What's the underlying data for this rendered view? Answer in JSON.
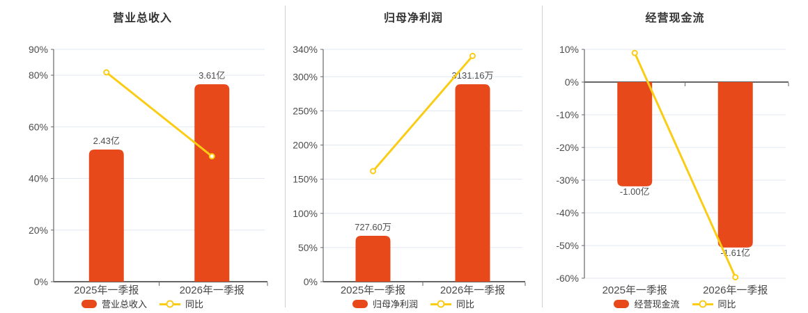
{
  "colors": {
    "background": "#ffffff",
    "bar": "#E8491B",
    "line": "#FACC14",
    "grid": "#E2E7F1",
    "axis": "#666666",
    "tick_label": "#4D4D4D",
    "value_label": "#4D4D4D",
    "category_label": "#4A4A4A",
    "title": "#333333",
    "legend_text": "#333333",
    "divider": "#CFCFCF",
    "marker_fill": "#ffffff"
  },
  "chart_data": [
    {
      "type": "bar+line",
      "title": "营业总收入",
      "categories": [
        "2025年一季报",
        "2026年一季报"
      ],
      "bar_series": {
        "name": "营业总收入",
        "value_labels": [
          "2.43亿",
          "3.61亿"
        ],
        "plot_values_pct": [
          51.2,
          76.5
        ]
      },
      "line_series": {
        "name": "同比",
        "values_pct": [
          81.1,
          48.6
        ]
      },
      "y_ticks_pct": [
        90,
        80,
        60,
        40,
        20,
        0
      ],
      "y_axis_range": [
        0,
        90
      ],
      "tick_suffix": "%",
      "value_label_position": "above",
      "grid": true,
      "legend_position": "bottom"
    },
    {
      "type": "bar+line",
      "title": "归母净利润",
      "categories": [
        "2025年一季报",
        "2026年一季报"
      ],
      "bar_series": {
        "name": "归母净利润",
        "value_labels": [
          "727.60万",
          "3131.16万"
        ],
        "plot_values_pct": [
          67.2,
          289.0
        ]
      },
      "line_series": {
        "name": "同比",
        "values_pct": [
          161.8,
          330.4
        ]
      },
      "y_ticks_pct": [
        340,
        300,
        250,
        200,
        150,
        100,
        50,
        0
      ],
      "y_axis_range": [
        0,
        340
      ],
      "tick_suffix": "%",
      "value_label_position": "above",
      "grid": true,
      "legend_position": "bottom"
    },
    {
      "type": "bar+line",
      "title": "经营现金流",
      "categories": [
        "2025年一季报",
        "2026年一季报"
      ],
      "bar_series": {
        "name": "经营现金流",
        "value_labels": [
          "-1.00亿",
          "-1.61亿"
        ],
        "plot_values_pct": [
          -31.9,
          -50.6
        ]
      },
      "line_series": {
        "name": "同比",
        "values_pct": [
          8.9,
          -59.7
        ]
      },
      "y_ticks_pct": [
        10,
        0,
        -10,
        -20,
        -30,
        -40,
        -50,
        -60
      ],
      "y_axis_range": [
        -60,
        10
      ],
      "tick_suffix": "%",
      "value_label_position": "below",
      "grid": true,
      "legend_position": "bottom"
    }
  ]
}
